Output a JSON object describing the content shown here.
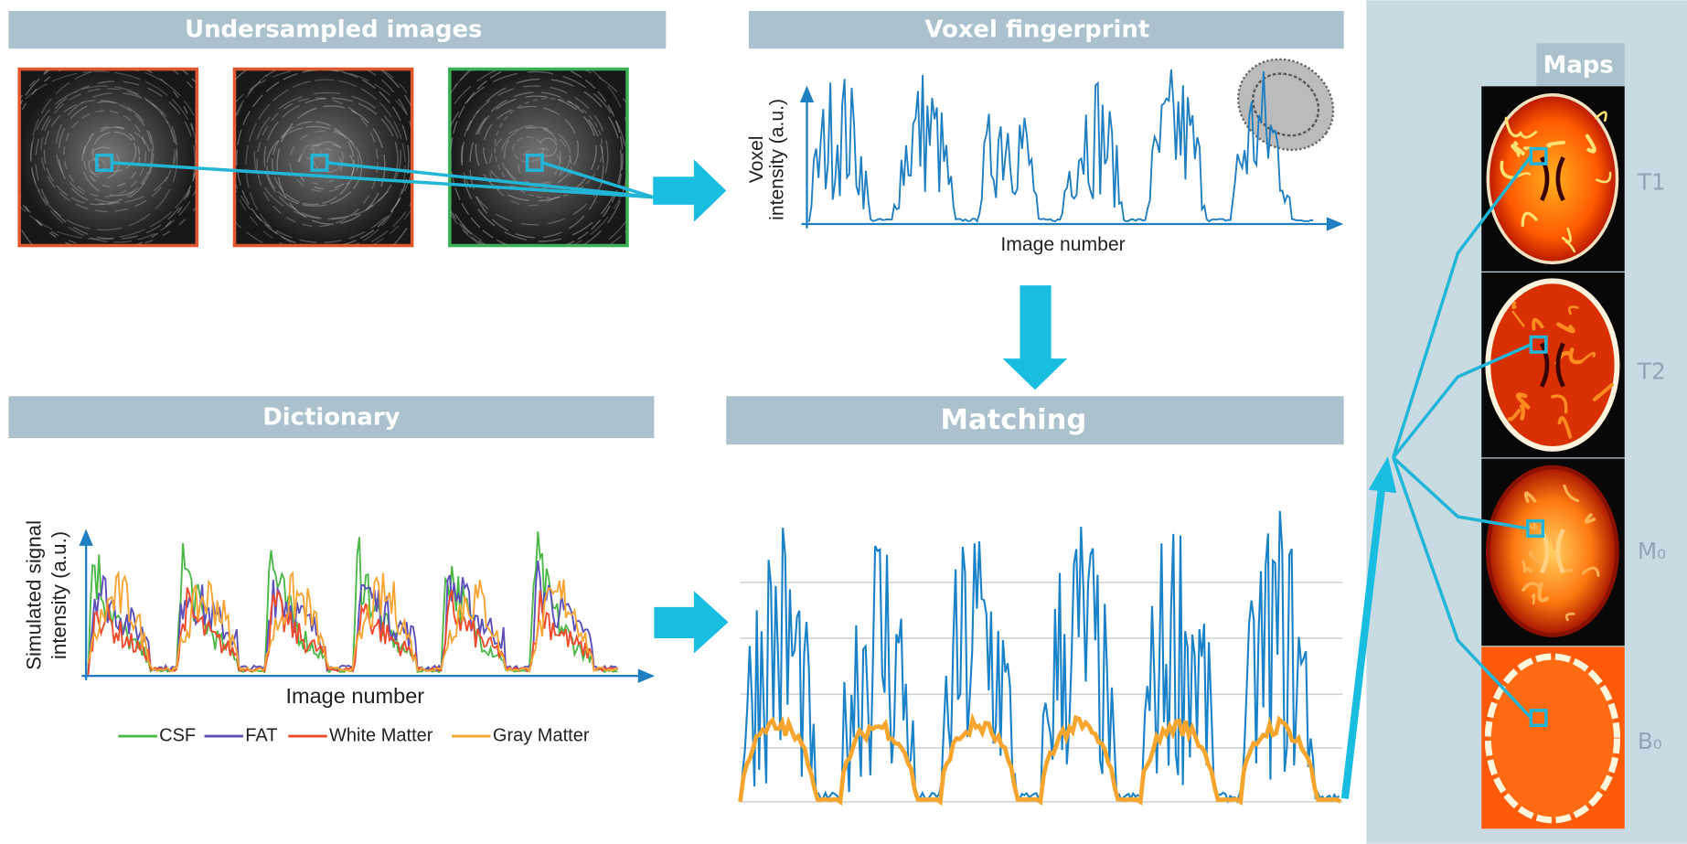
{
  "undersampled": {
    "title": "Undersampled images"
  },
  "fingerprint": {
    "title": "Voxel fingerprint",
    "y_label": [
      "Voxel",
      "intensity (a.u.)"
    ],
    "x_label": "Image number"
  },
  "dictionary": {
    "title": "Dictionary",
    "y_label": [
      "Simulated signal",
      "intensity (a.u.)"
    ],
    "x_label": "Image number",
    "legend": [
      {
        "name": "CSF",
        "color": "#4cb848"
      },
      {
        "name": "FAT",
        "color": "#5b4fb8"
      },
      {
        "name": "White Matter",
        "color": "#ef4a2e"
      },
      {
        "name": "Gray Matter",
        "color": "#f7a535"
      }
    ]
  },
  "matching": {
    "title": "Matching"
  },
  "maps": {
    "title": "Maps",
    "labels": [
      "T1",
      "T2",
      "M₀",
      "B₀"
    ]
  }
}
